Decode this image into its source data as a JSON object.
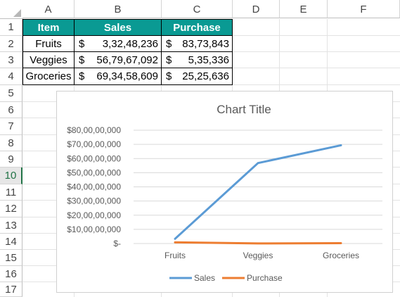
{
  "columns": [
    "A",
    "B",
    "C",
    "D",
    "E",
    "F"
  ],
  "rows": [
    "1",
    "2",
    "3",
    "4",
    "5",
    "6",
    "7",
    "8",
    "9",
    "10",
    "11",
    "12",
    "13",
    "14",
    "15",
    "16",
    "17"
  ],
  "active_row": "10",
  "table": {
    "headers": [
      "Item",
      "Sales",
      "Purchase"
    ],
    "rows": [
      {
        "item": "Fruits",
        "sales_sym": "$",
        "sales_num": "3,32,48,236",
        "purchase_sym": "$",
        "purchase_num": "83,73,843"
      },
      {
        "item": "Veggies",
        "sales_sym": "$",
        "sales_num": "56,79,67,092",
        "purchase_sym": "$",
        "purchase_num": "5,35,336"
      },
      {
        "item": "Groceries",
        "sales_sym": "$",
        "sales_num": "69,34,58,609",
        "purchase_sym": "$",
        "purchase_num": "25,25,636"
      }
    ]
  },
  "colors": {
    "header_fill": "#0a9a93",
    "sales_line": "#5b9bd5",
    "purchase_line": "#ed7d31",
    "active_row": "#217346"
  },
  "chart_data": {
    "type": "line",
    "title": "Chart Title",
    "categories": [
      "Fruits",
      "Veggies",
      "Groceries"
    ],
    "series": [
      {
        "name": "Sales",
        "values": [
          33248236,
          567967092,
          693458609
        ]
      },
      {
        "name": "Purchase",
        "values": [
          8373843,
          535336,
          2525636
        ]
      }
    ],
    "ylim": [
      0,
      800000000
    ],
    "y_ticks": [
      "$-",
      "$10,00,00,000",
      "$20,00,00,000",
      "$30,00,00,000",
      "$40,00,00,000",
      "$50,00,00,000",
      "$60,00,00,000",
      "$70,00,00,000",
      "$80,00,00,000"
    ],
    "grid": true,
    "legend": "bottom"
  }
}
